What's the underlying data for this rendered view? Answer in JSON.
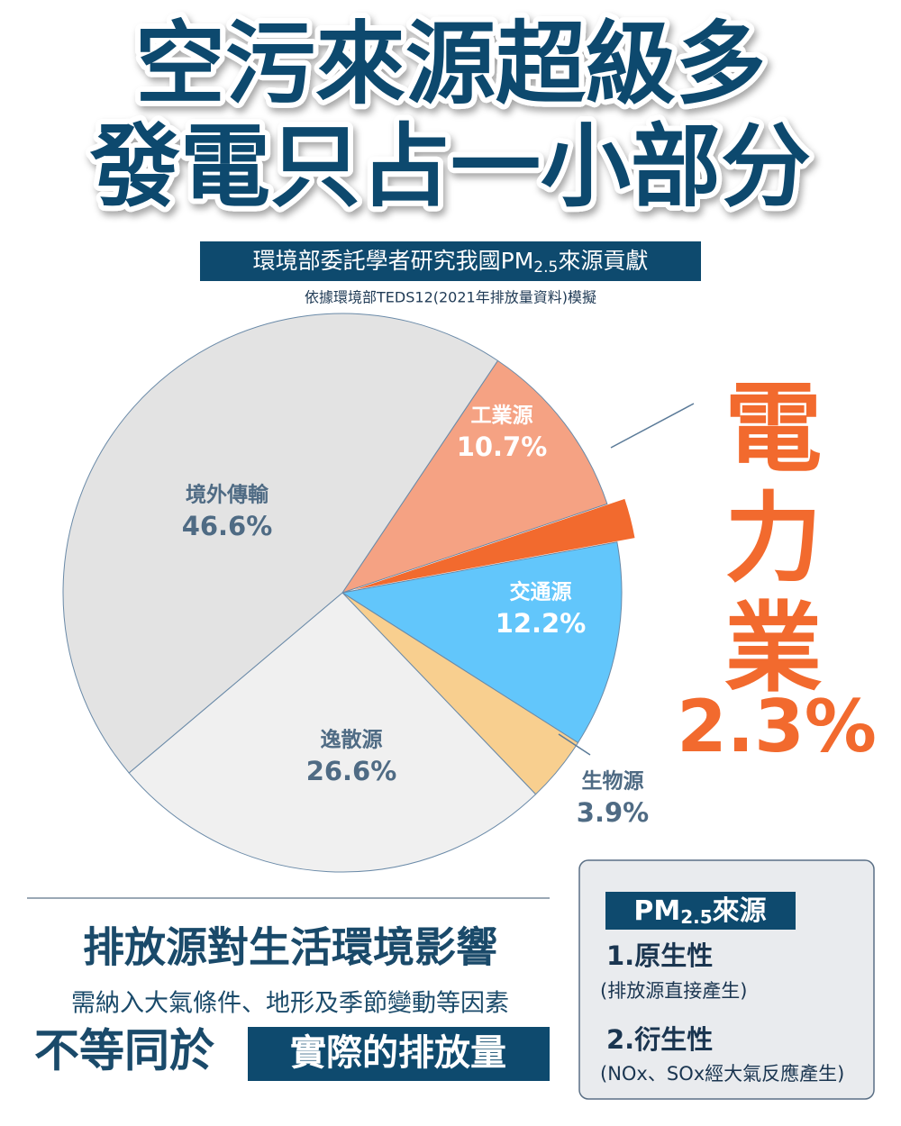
{
  "chart_data": {
    "type": "pie",
    "title_lines": [
      "空污來源超級多",
      "發電只占一小部分"
    ],
    "subtitle": [
      "環境部委託學者研究我國PM",
      "2.5",
      "來源貢獻"
    ],
    "note": "依據環境部TEDS12(2021年排放量資料)模擬",
    "categories": [
      "工業源",
      "電力業",
      "交通源",
      "生物源",
      "逸散源",
      "境外傳輸"
    ],
    "values": [
      10.7,
      2.3,
      12.2,
      3.9,
      26.6,
      46.6
    ],
    "value_labels": [
      "10.7%",
      "2.3%",
      "12.2%",
      "3.9%",
      "26.6%",
      "46.6%"
    ],
    "colors": [
      "#f5a283",
      "#f26a2e",
      "#62c6fb",
      "#f8cf8f",
      "#f0f0f0",
      "#e3e3e3"
    ],
    "footer": {
      "headline": "排放源對生活環境影響",
      "detail": "需納入大氣條件、地形及季節變動等因素",
      "conclusion": "不等同於",
      "conclusion_box": "實際的排放量"
    },
    "info_box": {
      "title": [
        "PM",
        "2.5",
        "來源"
      ],
      "items": [
        {
          "label": "1.原生性",
          "desc": "(排放源直接產生)"
        },
        {
          "label": "2.衍生性",
          "desc": "(NOx、SOx經大氣反應產生)"
        }
      ]
    }
  }
}
